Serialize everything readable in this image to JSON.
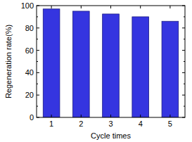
{
  "chart_data": {
    "type": "bar",
    "x_label": "Cycle times",
    "y_label": "Regeneration rate(%)",
    "categories": [
      "1",
      "2",
      "3",
      "4",
      "5"
    ],
    "values": [
      97,
      95,
      92.5,
      90,
      86
    ],
    "color": "#3535e0",
    "ylim": [
      0,
      100
    ],
    "yticks": [
      0,
      20,
      40,
      60,
      80,
      100
    ],
    "grid": false
  }
}
